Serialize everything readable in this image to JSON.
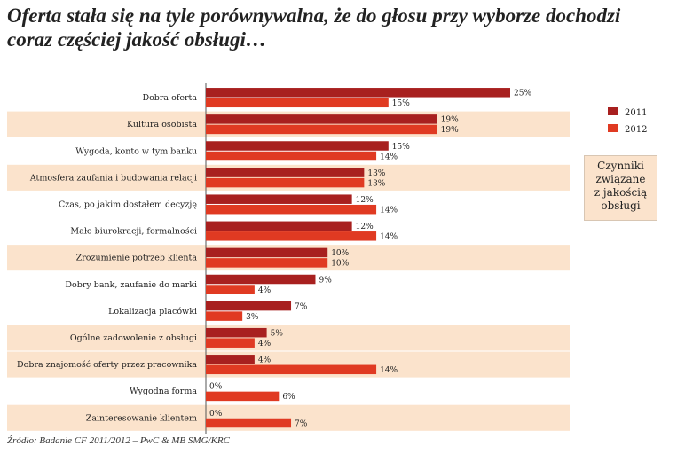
{
  "title": "Oferta stała się na tyle porównywalna, że do głosu przy wyborze dochodzi coraz częściej jakość obsługi…",
  "source": "Źródło: Badanie CF 2011/2012 – PwC & MB SMG/KRC",
  "callout": {
    "lines": [
      "Czynniki",
      "związane",
      "z jakością",
      "obsługi"
    ]
  },
  "colors": {
    "series_2011": "#a8201f",
    "series_2012": "#e03a22",
    "band": "#fbe3cc"
  },
  "chart_data": {
    "type": "bar",
    "orientation": "horizontal",
    "title": "Oferta stała się na tyle porównywalna, że do głosu przy wyborze dochodzi coraz częściej jakość obsługi…",
    "xlabel": "",
    "ylabel": "",
    "xlim": [
      0,
      25
    ],
    "categories": [
      "Dobra oferta",
      "Kultura osobista",
      "Wygoda, konto w tym banku",
      "Atmosfera zaufania i budowania relacji",
      "Czas, po jakim dostałem decyzję",
      "Mało biurokracji, formalności",
      "Zrozumienie potrzeb klienta",
      "Dobry bank, zaufanie do marki",
      "Lokalizacja placówki",
      "Ogólne zadowolenie z obsługi",
      "Dobra znajomość oferty przez pracownika",
      "Wygodna forma",
      "Zainteresowanie klientem"
    ],
    "highlighted": [
      false,
      true,
      false,
      true,
      false,
      false,
      true,
      false,
      false,
      true,
      true,
      false,
      true
    ],
    "series": [
      {
        "name": "2011",
        "values": [
          25,
          19,
          15,
          13,
          12,
          12,
          10,
          9,
          7,
          5,
          4,
          0,
          0
        ]
      },
      {
        "name": "2012",
        "values": [
          15,
          19,
          14,
          13,
          14,
          14,
          10,
          4,
          3,
          4,
          14,
          6,
          7
        ]
      }
    ],
    "value_suffix": "%",
    "legend": "right"
  }
}
